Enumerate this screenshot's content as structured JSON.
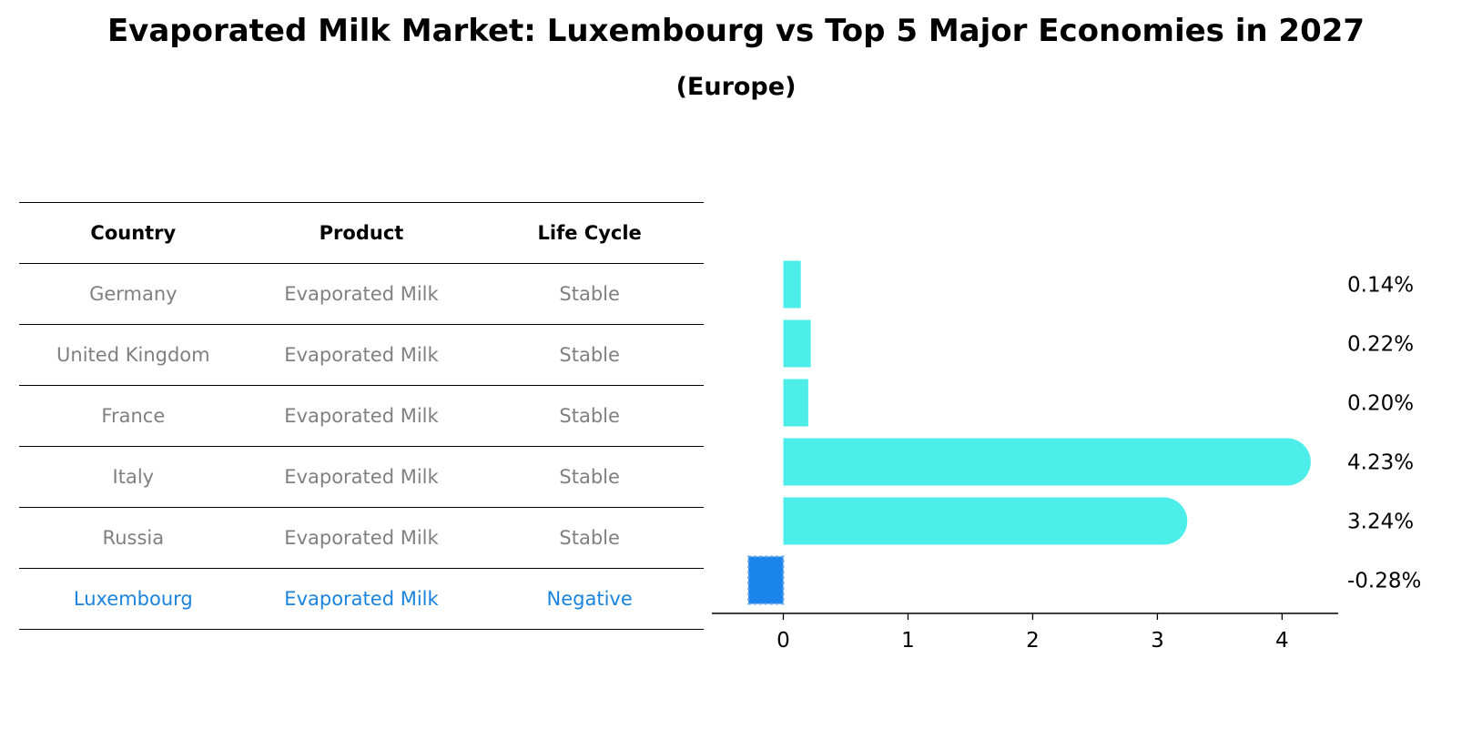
{
  "title": "Evaporated Milk Market: Luxembourg vs Top 5 Major Economies in 2027",
  "subtitle": "(Europe)",
  "table": {
    "headers": [
      "Country",
      "Product",
      "Life Cycle"
    ],
    "rows": [
      [
        "Germany",
        "Evaporated Milk",
        "Stable"
      ],
      [
        "United Kingdom",
        "Evaporated Milk",
        "Stable"
      ],
      [
        "France",
        "Evaporated Milk",
        "Stable"
      ],
      [
        "Italy",
        "Evaporated Milk",
        "Stable"
      ],
      [
        "Russia",
        "Evaporated Milk",
        "Stable"
      ],
      [
        "Luxembourg",
        "Evaporated Milk",
        "Negative"
      ]
    ],
    "highlight_row": 5
  },
  "colors": {
    "bar": "#4deeea",
    "highlight": "#1a83ec",
    "highlight_text": "#1a83de",
    "muted_text": "#808080"
  },
  "chart_data": {
    "type": "bar",
    "orientation": "horizontal",
    "categories": [
      "Germany",
      "United Kingdom",
      "France",
      "Italy",
      "Russia",
      "Luxembourg"
    ],
    "values": [
      0.14,
      0.22,
      0.2,
      4.23,
      3.24,
      -0.28
    ],
    "value_labels": [
      "0.14%",
      "0.22%",
      "0.20%",
      "4.23%",
      "3.24%",
      "-0.28%"
    ],
    "xlim": [
      -0.5,
      4.45
    ],
    "xticks": [
      0,
      1,
      2,
      3,
      4
    ],
    "highlight_index": 5,
    "grid": false
  }
}
